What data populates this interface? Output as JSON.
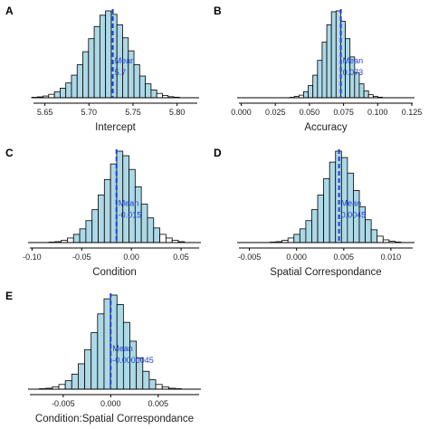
{
  "colors": {
    "fill_in": "#add8e6",
    "fill_out": "#ffffff",
    "bar_stroke": "#000000",
    "mean_line": "#1f3fd6"
  },
  "chart_data": [
    {
      "type": "bar",
      "panel": "A",
      "xlabel": "Intercept",
      "xlim": [
        5.635,
        5.825
      ],
      "ticks": [
        5.65,
        5.7,
        5.75,
        5.8
      ],
      "tick_labels": [
        "5.65",
        "5.70",
        "5.75",
        "5.80"
      ],
      "mean": 5.727,
      "mean_label": "Mean",
      "mean_value_label": "5.7",
      "bin_start": 5.635,
      "bin_width": 0.00645,
      "values": [
        0.5,
        1,
        2,
        4,
        7,
        11,
        17,
        26,
        38,
        53,
        68,
        82,
        95,
        100,
        96,
        84,
        69,
        54,
        38,
        25,
        16,
        9,
        5,
        2.5,
        1.2,
        0.6
      ],
      "in_interval": [
        false,
        false,
        false,
        false,
        true,
        true,
        true,
        true,
        true,
        true,
        true,
        true,
        true,
        true,
        true,
        true,
        true,
        true,
        true,
        true,
        true,
        true,
        false,
        false,
        false,
        false
      ]
    },
    {
      "type": "bar",
      "panel": "B",
      "xlabel": "Accuracy",
      "xlim": [
        -0.003,
        0.127
      ],
      "ticks": [
        0.0,
        0.025,
        0.05,
        0.075,
        0.1,
        0.125
      ],
      "tick_labels": [
        "0.000",
        "0.025",
        "0.050",
        "0.075",
        "0.100",
        "0.125"
      ],
      "mean": 0.073,
      "mean_label": "Mean",
      "mean_value_label": "0.073",
      "bin_start": 0.0355,
      "bin_width": 0.0034,
      "values": [
        0.5,
        1.5,
        3,
        7,
        14,
        26,
        43,
        64,
        84,
        99,
        100,
        88,
        68,
        47,
        29,
        16,
        8,
        3.5,
        1.5,
        0.6
      ],
      "in_interval": [
        false,
        false,
        false,
        true,
        true,
        true,
        true,
        true,
        true,
        true,
        true,
        true,
        true,
        true,
        true,
        true,
        true,
        false,
        false,
        false
      ]
    },
    {
      "type": "bar",
      "panel": "C",
      "xlabel": "Condition",
      "xlim": [
        -0.104,
        0.07
      ],
      "ticks": [
        -0.1,
        -0.05,
        0.0,
        0.05
      ],
      "tick_labels": [
        "-0.10",
        "-0.05",
        "0.00",
        "0.05"
      ],
      "mean": -0.015,
      "mean_label": "Mean",
      "mean_value_label": "-0.015",
      "bin_start": -0.083,
      "bin_width": 0.0062,
      "values": [
        0.5,
        1,
        2.5,
        5,
        9,
        15,
        24,
        36,
        52,
        69,
        86,
        100,
        95,
        80,
        61,
        42,
        27,
        16,
        9,
        5,
        2.5,
        1
      ],
      "in_interval": [
        false,
        false,
        false,
        false,
        true,
        true,
        true,
        true,
        true,
        true,
        true,
        true,
        true,
        true,
        true,
        true,
        true,
        true,
        false,
        false,
        false,
        false
      ]
    },
    {
      "type": "bar",
      "panel": "D",
      "xlabel": "Spatial Correspondance",
      "xlim": [
        -0.0063,
        0.0125
      ],
      "ticks": [
        -0.005,
        0.0,
        0.005,
        0.01
      ],
      "tick_labels": [
        "-0.005",
        "0.000",
        "0.005",
        "0.010"
      ],
      "mean": 0.0045,
      "mean_label": "Mean",
      "mean_value_label": "0.0045",
      "bin_start": -0.0028,
      "bin_width": 0.00063,
      "values": [
        0.5,
        1,
        2.5,
        5,
        9,
        15,
        24,
        36,
        52,
        70,
        88,
        100,
        93,
        76,
        57,
        39,
        25,
        14,
        7,
        3,
        1.5,
        0.6
      ],
      "in_interval": [
        false,
        false,
        false,
        false,
        true,
        true,
        true,
        true,
        true,
        true,
        true,
        true,
        true,
        true,
        true,
        true,
        true,
        true,
        false,
        false,
        false,
        false
      ]
    },
    {
      "type": "bar",
      "panel": "E",
      "xlabel": "Condition:Spatial Correspondance",
      "xlim": [
        -0.0087,
        0.0095
      ],
      "ticks": [
        -0.005,
        0.0,
        0.005
      ],
      "tick_labels": [
        "-0.005",
        "0.000",
        "0.005"
      ],
      "mean": -4.5e-06,
      "mean_label": "Mean",
      "mean_value_label": "-0.0000045",
      "bin_start": -0.0075,
      "bin_width": 0.00068,
      "values": [
        0.5,
        1,
        2.5,
        5,
        9,
        16,
        27,
        42,
        60,
        80,
        96,
        100,
        90,
        71,
        51,
        33,
        19,
        10,
        5,
        2.5,
        1,
        0.5
      ],
      "in_interval": [
        false,
        false,
        false,
        false,
        true,
        true,
        true,
        true,
        true,
        true,
        true,
        true,
        true,
        true,
        true,
        true,
        true,
        true,
        false,
        false,
        false,
        false
      ]
    }
  ]
}
